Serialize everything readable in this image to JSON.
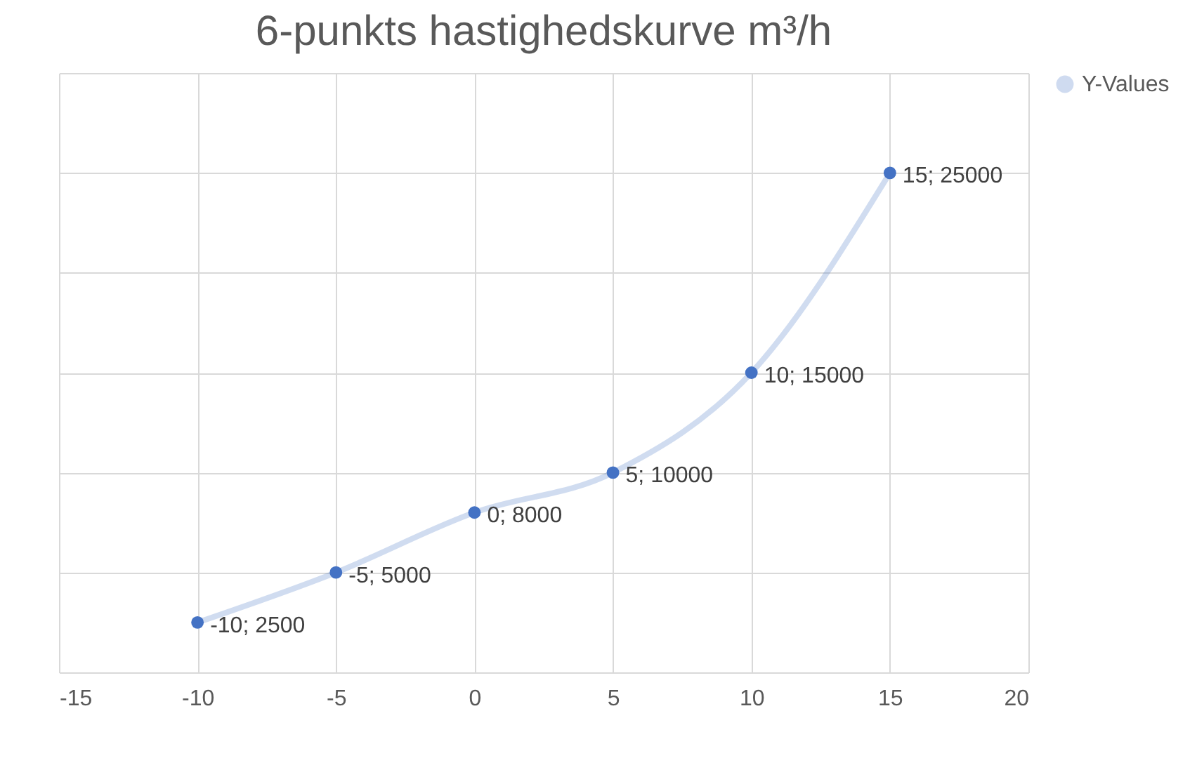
{
  "chart_data": {
    "type": "line",
    "title": "6-punkts hastighedskurve m³/h",
    "x": [
      -10,
      -5,
      0,
      5,
      10,
      15
    ],
    "series": [
      {
        "name": "Y-Values",
        "color": "#4472c4",
        "values": [
          2500,
          5000,
          8000,
          10000,
          15000,
          25000
        ],
        "value_labels": [
          "-10; 2500",
          "-5; 5000",
          "0; 8000",
          "5; 10000",
          "10; 15000",
          "15; 25000"
        ]
      }
    ],
    "xlim": [
      -15,
      20
    ],
    "xticks": [
      -15,
      -10,
      -5,
      0,
      5,
      10,
      15,
      20
    ],
    "ylim": [
      0,
      30000
    ],
    "yticks": [
      {
        "value": 0,
        "label": null
      },
      {
        "value": 5000,
        "label": null
      },
      {
        "value": 10000,
        "label": null
      },
      {
        "value": 15000,
        "label": null
      },
      {
        "value": 20000,
        "label": null
      },
      {
        "value": 25000,
        "label": null
      },
      {
        "value": 30000,
        "label": null
      }
    ],
    "grid": true,
    "legend": "right",
    "marker": "circle",
    "line_style": "solid"
  }
}
